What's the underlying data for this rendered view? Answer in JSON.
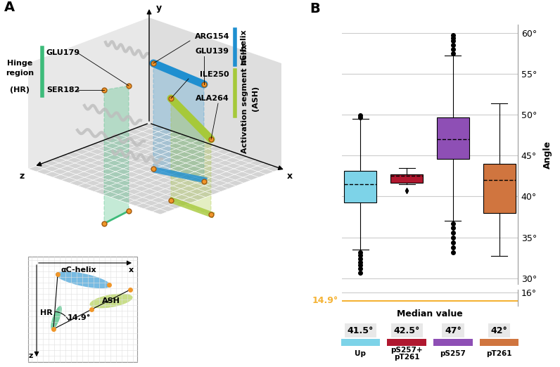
{
  "diagram": {
    "panel_label": "A",
    "axis_labels": {
      "x": "x",
      "y": "y",
      "z": "z"
    },
    "hinge_region": {
      "label": [
        "Hinge",
        "region",
        "(HR)"
      ],
      "residues": [
        "GLU179",
        "SER182"
      ],
      "color": "#3dbb7a"
    },
    "ac_helix": {
      "label": "αC-helix",
      "residues": [
        "ARG154",
        "GLU139"
      ],
      "color": "#1f8fd0"
    },
    "ash": {
      "label": [
        "Activation segment helix",
        "(ASH)"
      ],
      "residues": [
        "ILE250",
        "ALA264"
      ],
      "color": "#a6c93a"
    },
    "inset": {
      "labels": {
        "ac": "αC-helix",
        "ash": "ASH",
        "hr": "HR"
      },
      "angle_label": "14.9°",
      "axis_labels": {
        "x": "x",
        "z": "z"
      }
    }
  },
  "chart_data": {
    "type": "box",
    "panel_label": "B",
    "y_label": "Angle",
    "legend_title": "Median value",
    "grid": true,
    "tick_labels": "y",
    "ylim": [
      29.3,
      61
    ],
    "yticks": [
      {
        "value": 30,
        "label": "30°"
      },
      {
        "value": 35,
        "label": "35°"
      },
      {
        "value": 40,
        "label": "40°"
      },
      {
        "value": 45,
        "label": "45°"
      },
      {
        "value": 50,
        "label": "50°"
      },
      {
        "value": 55,
        "label": "55°"
      },
      {
        "value": 60,
        "label": "60°"
      }
    ],
    "lower_ylim": [
      14.2,
      16.4
    ],
    "lower_yticks": [
      {
        "value": 16,
        "label": "16°"
      }
    ],
    "reference_line": {
      "value": 14.9,
      "label": "14.9°",
      "color": "#f5b335"
    },
    "series": [
      {
        "name": "Up",
        "color": "#7dd3e8",
        "marker": "o",
        "median": 41.5,
        "median_label": "41.5°",
        "q1": 39.3,
        "q3": 43.1,
        "whislo": 33.5,
        "whishi": 49.5,
        "fliers": [
          30.7,
          31.2,
          31.6,
          32.0,
          32.4,
          32.8,
          33.2,
          49.7,
          49.9
        ]
      },
      {
        "name": "pS257+\npT261",
        "color": "#b0182f",
        "marker": "d",
        "median": 42.5,
        "median_label": "42.5°",
        "q1": 41.7,
        "q3": 42.7,
        "whislo": 41.5,
        "whishi": 43.5,
        "fliers": [
          40.7
        ]
      },
      {
        "name": "pS257",
        "color": "#8e4fb5",
        "marker": "o",
        "median": 47,
        "median_label": "47°",
        "q1": 44.6,
        "q3": 49.7,
        "whislo": 37.0,
        "whishi": 57.2,
        "fliers": [
          33.2,
          33.8,
          34.4,
          35.0,
          35.6,
          36.2,
          36.7,
          57.5,
          58.0,
          58.5,
          59.0,
          59.4,
          59.7
        ]
      },
      {
        "name": "pT261",
        "color": "#d0753f",
        "marker": "o",
        "median": 42,
        "median_label": "42°",
        "q1": 38.0,
        "q3": 44.0,
        "whislo": 32.7,
        "whishi": 51.4,
        "fliers": []
      }
    ]
  }
}
